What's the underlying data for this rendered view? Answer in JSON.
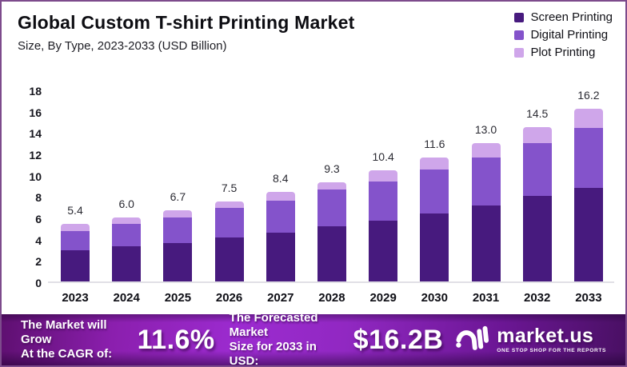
{
  "header": {
    "title": "Global Custom T-shirt Printing Market",
    "subtitle": "Size, By Type, 2023-2033 (USD Billion)"
  },
  "legend": [
    {
      "label": "Screen Printing",
      "color": "#471A7E"
    },
    {
      "label": "Digital Printing",
      "color": "#8453CB"
    },
    {
      "label": "Plot Printing",
      "color": "#CFA6EA"
    }
  ],
  "chart_data": {
    "type": "bar",
    "stacked": true,
    "title": "Global Custom T-shirt Printing Market",
    "subtitle": "Size, By Type, 2023-2033 (USD Billion)",
    "unit": "USD Billion",
    "categories": [
      "2023",
      "2024",
      "2025",
      "2026",
      "2027",
      "2028",
      "2029",
      "2030",
      "2031",
      "2032",
      "2033"
    ],
    "series": [
      {
        "name": "Screen Printing",
        "color": "#471A7E",
        "values": [
          2.9,
          3.3,
          3.6,
          4.1,
          4.6,
          5.2,
          5.7,
          6.4,
          7.1,
          8.0,
          8.8
        ]
      },
      {
        "name": "Digital Printing",
        "color": "#8453CB",
        "values": [
          1.8,
          2.1,
          2.4,
          2.8,
          3.0,
          3.4,
          3.7,
          4.1,
          4.5,
          5.0,
          5.6
        ]
      },
      {
        "name": "Plot Printing",
        "color": "#CFA6EA",
        "values": [
          0.7,
          0.6,
          0.7,
          0.6,
          0.8,
          0.7,
          1.0,
          1.1,
          1.4,
          1.5,
          1.8
        ]
      }
    ],
    "totals": [
      5.4,
      6.0,
      6.7,
      7.5,
      8.4,
      9.3,
      10.4,
      11.6,
      13.0,
      14.5,
      16.2
    ],
    "ylim": [
      0,
      18
    ],
    "yticks": [
      18,
      16,
      14,
      12,
      10,
      8,
      6,
      4,
      2,
      0
    ],
    "grid": false,
    "legend_position": "top-right"
  },
  "footer": {
    "cagr_label": [
      "The Market will Grow",
      "At the CAGR of:"
    ],
    "cagr_value": "11.6%",
    "forecast_label": [
      "The Forecasted Market",
      "Size for 2033 in USD:"
    ],
    "forecast_value": "$16.2B",
    "brand": {
      "name": "market.us",
      "tagline": "ONE STOP SHOP FOR THE REPORTS"
    }
  },
  "colors": {
    "screen_printing": "#471A7E",
    "digital_printing": "#8453CB",
    "plot_printing": "#CFA6EA",
    "frame_border": "#7D4B8C",
    "baseline": "#E1E0E6",
    "footer_purple": "#9C2BD0"
  }
}
